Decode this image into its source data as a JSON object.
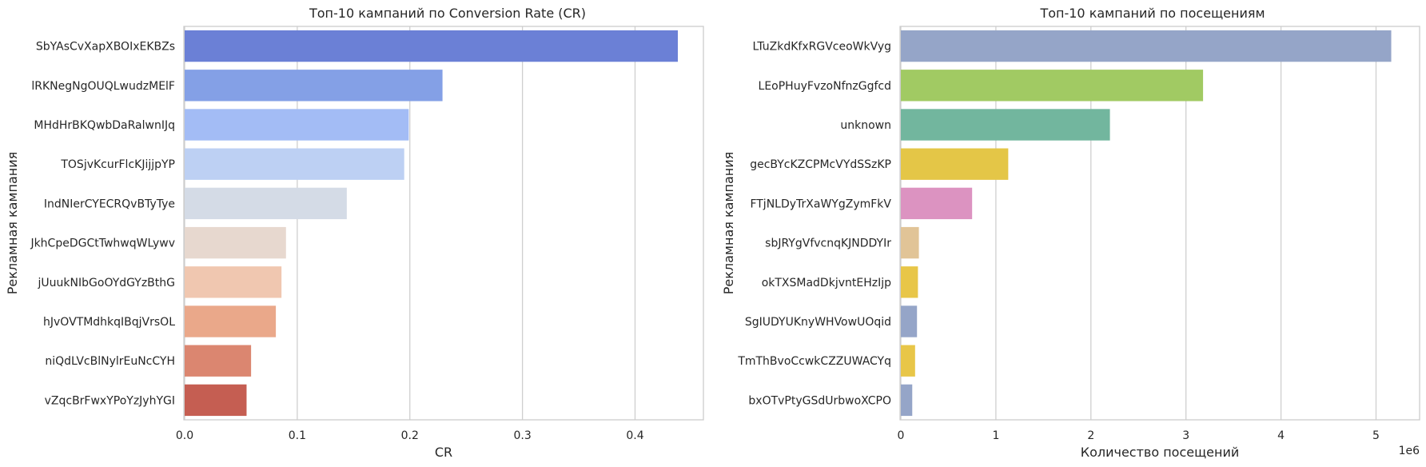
{
  "chart_data": [
    {
      "type": "bar",
      "orientation": "horizontal",
      "title": "Топ-10 кампаний по Conversion Rate (CR)",
      "xlabel": "CR",
      "ylabel": "Рекламная кампания",
      "xlim": [
        0,
        0.46
      ],
      "xticks": [
        0,
        0.1,
        0.2,
        0.3,
        0.4
      ],
      "xtick_labels": [
        "0.0",
        "0.1",
        "0.2",
        "0.3",
        "0.4"
      ],
      "grid": "vertical",
      "categories": [
        "SbYAsCvXapXBOIxEKBZs",
        "lRKNegNgOUQLwudzMElF",
        "MHdHrBKQwbDaRalwnIJq",
        "TOSjvKcurFlcKJijjpYP",
        "IndNIerCYECRQvBTyTye",
        "JkhCpeDGCtTwhwqWLywv",
        "jUuukNIbGoOYdGYzBthG",
        "hJvOVTMdhkqIBqjVrsOL",
        "niQdLVcBlNylrEuNcCYH",
        "vZqcBrFwxYPoYzJyhYGI"
      ],
      "values": [
        0.438,
        0.229,
        0.199,
        0.195,
        0.144,
        0.09,
        0.086,
        0.081,
        0.059,
        0.055
      ],
      "colors": [
        "#6b80d6",
        "#84a0e6",
        "#a3bcf5",
        "#bdd0f3",
        "#d4dbe6",
        "#e7d8cf",
        "#f0c7b0",
        "#eaa88a",
        "#db8670",
        "#c55e52"
      ]
    },
    {
      "type": "bar",
      "orientation": "horizontal",
      "title": "Топ-10 кампаний по посещениям",
      "xlabel": "Количество посещений",
      "ylabel": "Рекламная кампания",
      "x_scale_label": "1e6",
      "xlim": [
        0,
        5.45
      ],
      "xticks": [
        0,
        1,
        2,
        3,
        4,
        5
      ],
      "xtick_labels": [
        "0",
        "1",
        "2",
        "3",
        "4",
        "5"
      ],
      "grid": "vertical",
      "categories": [
        "LTuZkdKfxRGVceoWkVyg",
        "LEoPHuyFvzoNfnzGgfcd",
        "unknown",
        "gecBYcKZCPMcVYdSSzKP",
        "FTjNLDyTrXaWYgZymFkV",
        "sbJRYgVfvcnqKJNDDYIr",
        "okTXSMadDkjvntEHzIjp",
        "SgIUDYUKnyWHVowUOqid",
        "TmThBvoCcwkCZZUWACYq",
        "bxOTvPtyGSdUrbwoXCPO"
      ],
      "values": [
        5.16,
        3.18,
        2.2,
        1.13,
        0.75,
        0.19,
        0.18,
        0.17,
        0.15,
        0.12
      ],
      "colors": [
        "#95a5c8",
        "#a1ca63",
        "#72b69e",
        "#e4c647",
        "#dc93c1",
        "#e1c497",
        "#e8c648",
        "#95a5c8",
        "#e8c648",
        "#95a5c8"
      ]
    }
  ]
}
